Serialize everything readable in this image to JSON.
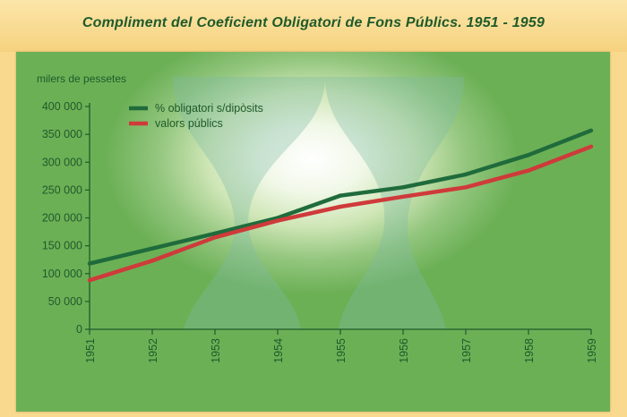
{
  "title": "Compliment del Coeficient Obligatori de Fons Públics. 1951 - 1959",
  "colors": {
    "background": "#f8d98e",
    "panel": "#7fbd68",
    "text": "#1f5a2a",
    "series_obligatori": "#1f6b3b",
    "series_valors": "#cf3a3a"
  },
  "chart_data": {
    "type": "line",
    "title": "Compliment del Coeficient Obligatori de Fons Públics. 1951 - 1959",
    "xlabel": "",
    "ylabel": "milers de pessetes",
    "x": [
      "1951",
      "1952",
      "1953",
      "1954",
      "1955",
      "1956",
      "1957",
      "1958",
      "1959"
    ],
    "y_ticks": [
      "0",
      "50 000",
      "100 000",
      "150 000",
      "200 000",
      "250 000",
      "300 000",
      "350 000",
      "400 000"
    ],
    "ylim": [
      0,
      400000
    ],
    "grid": false,
    "legend_position": "top-left",
    "series": [
      {
        "name": "% obligatori  s/dipòsits",
        "color": "#1f6b3b",
        "values": [
          118000,
          145000,
          172000,
          200000,
          240000,
          255000,
          278000,
          313000,
          357000
        ]
      },
      {
        "name": "valors públics",
        "color": "#cf3a3a",
        "values": [
          88000,
          123000,
          165000,
          195000,
          220000,
          238000,
          255000,
          285000,
          328000
        ]
      }
    ]
  }
}
